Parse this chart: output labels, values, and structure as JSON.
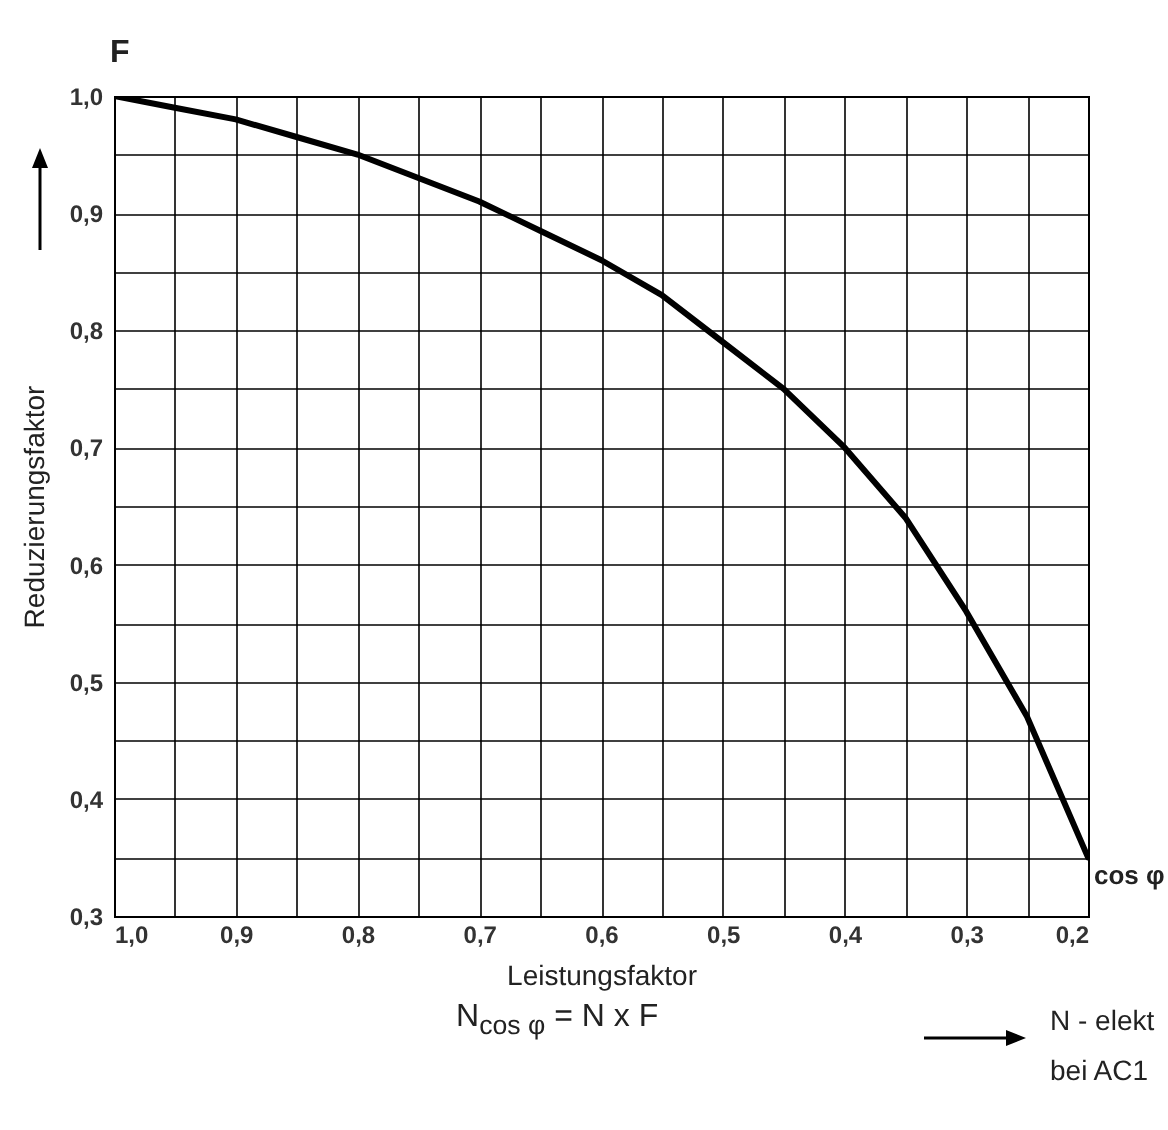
{
  "chart_data": {
    "type": "line",
    "xlabel": "Leistungsfaktor",
    "ylabel": "Reduzierungsfaktor",
    "annotations": [
      "F",
      "cos φ",
      "N$_{cos φ}$ = N x F",
      "N - elekt",
      "bei AC1"
    ],
    "x": [
      1.0,
      0.95,
      0.9,
      0.85,
      0.8,
      0.75,
      0.7,
      0.65,
      0.6,
      0.55,
      0.5,
      0.45,
      0.4,
      0.35,
      0.3,
      0.25,
      0.2
    ],
    "series": [
      {
        "color": "#000000",
        "values": [
          1.0,
          0.99,
          0.98,
          0.965,
          0.95,
          0.93,
          0.91,
          0.885,
          0.86,
          0.83,
          0.79,
          0.75,
          0.7,
          0.64,
          0.56,
          0.47,
          0.35
        ]
      }
    ],
    "xlim": [
      1.0,
      0.2
    ],
    "xticks": [
      {
        "value": 1.0,
        "label": "1,0"
      },
      {
        "value": 0.95,
        "label": null
      },
      {
        "value": 0.9,
        "label": "0,9"
      },
      {
        "value": 0.85,
        "label": null
      },
      {
        "value": 0.8,
        "label": "0,8"
      },
      {
        "value": 0.75,
        "label": null
      },
      {
        "value": 0.7,
        "label": "0,7"
      },
      {
        "value": 0.65,
        "label": null
      },
      {
        "value": 0.6,
        "label": "0,6"
      },
      {
        "value": 0.55,
        "label": null
      },
      {
        "value": 0.5,
        "label": "0,5"
      },
      {
        "value": 0.45,
        "label": null
      },
      {
        "value": 0.4,
        "label": "0,4"
      },
      {
        "value": 0.35,
        "label": null
      },
      {
        "value": 0.3,
        "label": "0,3"
      },
      {
        "value": 0.25,
        "label": null
      },
      {
        "value": 0.2,
        "label": "0,2"
      }
    ],
    "ylim": [
      0.3,
      1.0
    ],
    "yticks": [
      {
        "value": 0.3,
        "label": "0,3"
      },
      {
        "value": 0.35,
        "label": null
      },
      {
        "value": 0.4,
        "label": "0,4"
      },
      {
        "value": 0.45,
        "label": null
      },
      {
        "value": 0.5,
        "label": "0,5"
      },
      {
        "value": 0.55,
        "label": null
      },
      {
        "value": 0.6,
        "label": "0,6"
      },
      {
        "value": 0.65,
        "label": null
      },
      {
        "value": 0.7,
        "label": "0,7"
      },
      {
        "value": 0.75,
        "label": null
      },
      {
        "value": 0.8,
        "label": "0,8"
      },
      {
        "value": 0.85,
        "label": null
      },
      {
        "value": 0.9,
        "label": "0,9"
      },
      {
        "value": 0.95,
        "label": null
      },
      {
        "value": 1.0,
        "label": "1,0"
      }
    ],
    "grid": true,
    "line_style": "solid"
  }
}
